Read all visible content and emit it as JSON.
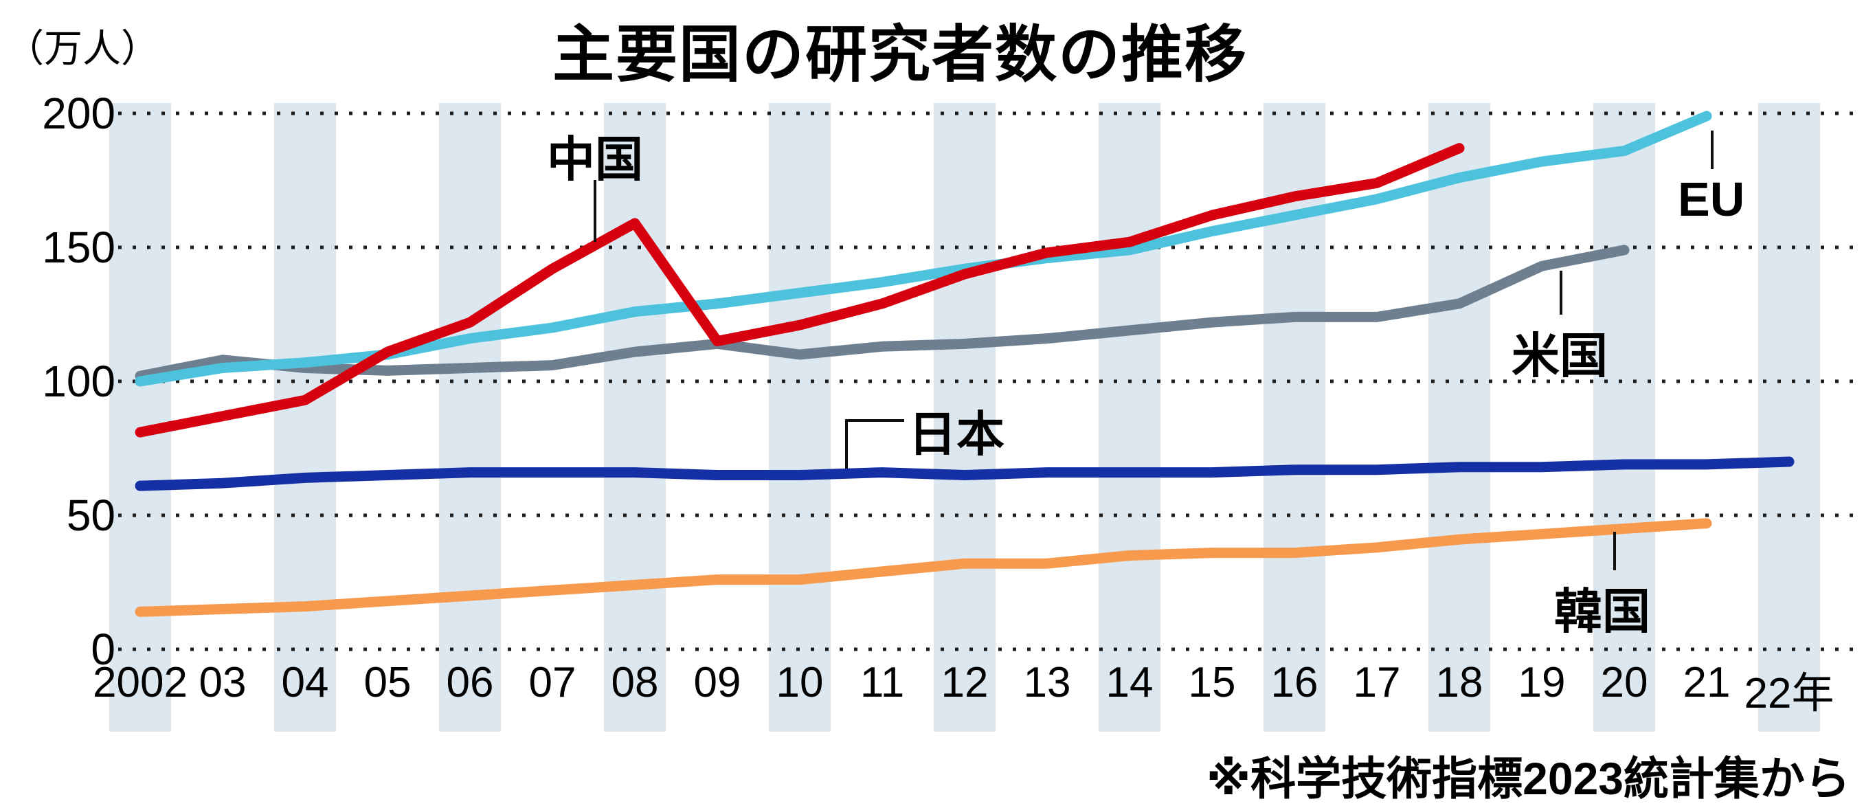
{
  "title": "主要国の研究者数の推移",
  "unit_label": "（万人）",
  "source_note": "※科学技術指標2023統計集から",
  "colors": {
    "stripe": "#dce7ef",
    "grid": "#1c1c1c",
    "connector": "#111111"
  },
  "chart_data": {
    "type": "line",
    "title": "主要国の研究者数の推移",
    "ylabel": "（万人）",
    "ylim": [
      0,
      200
    ],
    "yticks": [
      0,
      50,
      100,
      150,
      200
    ],
    "grid": "dotted-horizontal",
    "legend_position": "inline-labels",
    "x_start_year": 2002,
    "xtick_labels": [
      "2002",
      "03",
      "04",
      "05",
      "06",
      "07",
      "08",
      "09",
      "10",
      "11",
      "12",
      "13",
      "14",
      "15",
      "16",
      "17",
      "18",
      "19",
      "20",
      "21",
      "22年"
    ],
    "series": [
      {
        "id": "us",
        "name": "米国",
        "color": "#6e8090",
        "start_year": 2002,
        "end_year": 2020,
        "values": [
          102,
          108,
          105,
          104,
          105,
          106,
          111,
          114,
          110,
          113,
          114,
          116,
          119,
          122,
          124,
          124,
          129,
          143,
          149
        ]
      },
      {
        "id": "eu",
        "name": "EU",
        "color": "#4cc2dd",
        "start_year": 2002,
        "end_year": 2021,
        "values": [
          100,
          105,
          107,
          110,
          116,
          120,
          126,
          129,
          133,
          137,
          142,
          146,
          149,
          156,
          162,
          168,
          176,
          182,
          186,
          199
        ]
      },
      {
        "id": "china",
        "name": "中国",
        "color": "#d7000f",
        "start_year": 2002,
        "end_year": 2018,
        "values": [
          81,
          87,
          93,
          111,
          122,
          142,
          159,
          115,
          121,
          129,
          140,
          148,
          152,
          162,
          169,
          174,
          187
        ]
      },
      {
        "id": "japan",
        "name": "日本",
        "color": "#152fa5",
        "start_year": 2002,
        "end_year": 2022,
        "values": [
          61,
          62,
          64,
          65,
          66,
          66,
          66,
          65,
          65,
          66,
          65,
          66,
          66,
          66,
          67,
          67,
          68,
          68,
          69,
          69,
          70
        ]
      },
      {
        "id": "korea",
        "name": "韓国",
        "color": "#f79a4d",
        "start_year": 2002,
        "end_year": 2021,
        "values": [
          14,
          15,
          16,
          18,
          20,
          22,
          24,
          26,
          26,
          29,
          32,
          32,
          35,
          36,
          36,
          38,
          41,
          43,
          45,
          47
        ]
      }
    ]
  }
}
